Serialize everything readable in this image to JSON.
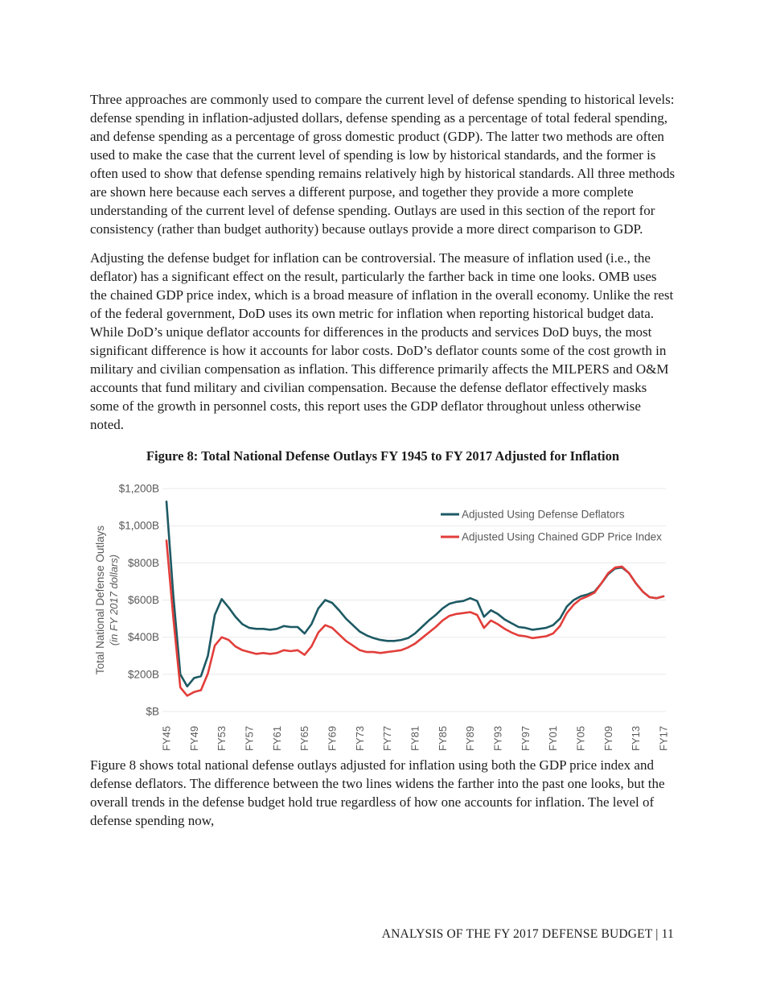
{
  "document": {
    "paragraphs": [
      "Three approaches are commonly used to compare the current level of defense spending to historical levels: defense spending in inflation-adjusted dollars, defense spending as a percentage of total federal spending, and defense spending as a percentage of gross domestic product (GDP). The latter two methods are often used to make the case that the current level of spending is low by historical standards, and the former is often used to show that defense spending remains relatively high by historical standards. All three methods are shown here because each serves a different purpose, and together they provide a more complete understanding of the current level of defense spending. Outlays are used in this section of the report for consistency (rather than budget authority) because outlays provide a more direct comparison to GDP.",
      "Adjusting the defense budget for inflation can be controversial. The measure of inflation used (i.e., the deflator) has a significant effect on the result, particularly the farther back in time one looks. OMB uses the chained GDP price index, which is a broad measure of inflation in the overall economy. Unlike the rest of the federal government, DoD uses its own metric for inflation when reporting historical budget data. While DoD’s unique deflator accounts for differences in the products and services DoD buys, the most significant difference is how it accounts for labor costs. DoD’s deflator counts some of the cost growth in military and civilian compensation as inflation. This difference primarily affects the MILPERS and O&M accounts that fund military and civilian compensation. Because the defense deflator effectively masks some of the growth in personnel costs, this report uses the GDP deflator throughout unless otherwise noted.",
      "Figure 8 shows total national defense outlays adjusted for inflation using both the GDP price index and defense deflators. The difference between the two lines widens the farther into the past one looks, but the overall trends in the defense budget hold true regardless of how one accounts for inflation. The level of defense spending now,"
    ]
  },
  "figure": {
    "title": "Figure 8: Total National Defense Outlays FY 1945 to FY 2017 Adjusted for Inflation"
  },
  "chart_data": {
    "type": "line",
    "title": "Figure 8: Total National Defense Outlays FY 1945 to FY 2017 Adjusted for Inflation",
    "ylabel": "Total National Defense Outlays",
    "ylabel_sub": "(in FY 2017 dollars)",
    "xlabel": "",
    "ylim": [
      0,
      1200
    ],
    "grid": "horizontal",
    "legend_position": "top-right-inside",
    "x_start_year": 1945,
    "x_end_year": 2017,
    "x_tick_years": [
      1945,
      1949,
      1953,
      1957,
      1961,
      1965,
      1969,
      1973,
      1977,
      1981,
      1985,
      1989,
      1993,
      1997,
      2001,
      2005,
      2009,
      2013,
      2017
    ],
    "x_tick_labels": [
      "FY45",
      "FY49",
      "FY53",
      "FY57",
      "FY61",
      "FY65",
      "FY69",
      "FY73",
      "FY77",
      "FY81",
      "FY85",
      "FY89",
      "FY93",
      "FY97",
      "FY01",
      "FY05",
      "FY09",
      "FY13",
      "FY17"
    ],
    "y_ticks": [
      {
        "value": 0,
        "label": "$B"
      },
      {
        "value": 200,
        "label": "$200B"
      },
      {
        "value": 400,
        "label": "$400B"
      },
      {
        "value": 600,
        "label": "$600B"
      },
      {
        "value": 800,
        "label": "$800B"
      },
      {
        "value": 1000,
        "label": "$1,000B"
      },
      {
        "value": 1200,
        "label": "$1,200B"
      }
    ],
    "series": [
      {
        "name": "Adjusted Using Defense Deflators",
        "color": "#1d5a64",
        "values_unit": "billions of FY2017 dollars, FY1945-FY2017 annual",
        "values": [
          1130,
          620,
          200,
          135,
          180,
          190,
          300,
          520,
          605,
          560,
          510,
          470,
          450,
          445,
          445,
          440,
          445,
          460,
          455,
          455,
          420,
          470,
          555,
          600,
          585,
          545,
          500,
          465,
          430,
          410,
          395,
          385,
          380,
          380,
          385,
          395,
          420,
          455,
          490,
          520,
          555,
          580,
          590,
          595,
          610,
          595,
          510,
          545,
          525,
          495,
          475,
          455,
          450,
          440,
          445,
          450,
          465,
          500,
          565,
          600,
          620,
          630,
          645,
          690,
          740,
          770,
          775,
          745,
          690,
          645,
          615,
          610,
          620
        ]
      },
      {
        "name": "Adjusted Using Chained GDP Price Index",
        "color": "#e23e3a",
        "values_unit": "billions of FY2017 dollars, FY1945-FY2017 annual",
        "values": [
          920,
          500,
          130,
          85,
          105,
          115,
          205,
          355,
          400,
          385,
          350,
          330,
          320,
          310,
          315,
          310,
          315,
          330,
          325,
          330,
          305,
          350,
          425,
          465,
          450,
          415,
          380,
          355,
          330,
          320,
          320,
          315,
          320,
          325,
          330,
          345,
          365,
          395,
          425,
          455,
          490,
          515,
          525,
          530,
          535,
          520,
          450,
          490,
          470,
          445,
          425,
          410,
          405,
          395,
          400,
          405,
          420,
          460,
          530,
          575,
          605,
          620,
          640,
          690,
          745,
          775,
          780,
          745,
          690,
          645,
          615,
          610,
          620
        ]
      }
    ],
    "colors": {
      "gridline": "#e9e9e9",
      "axis_text": "#595959"
    }
  },
  "footer": {
    "text": "ANALYSIS OF THE FY 2017 DEFENSE BUDGET | 11"
  }
}
